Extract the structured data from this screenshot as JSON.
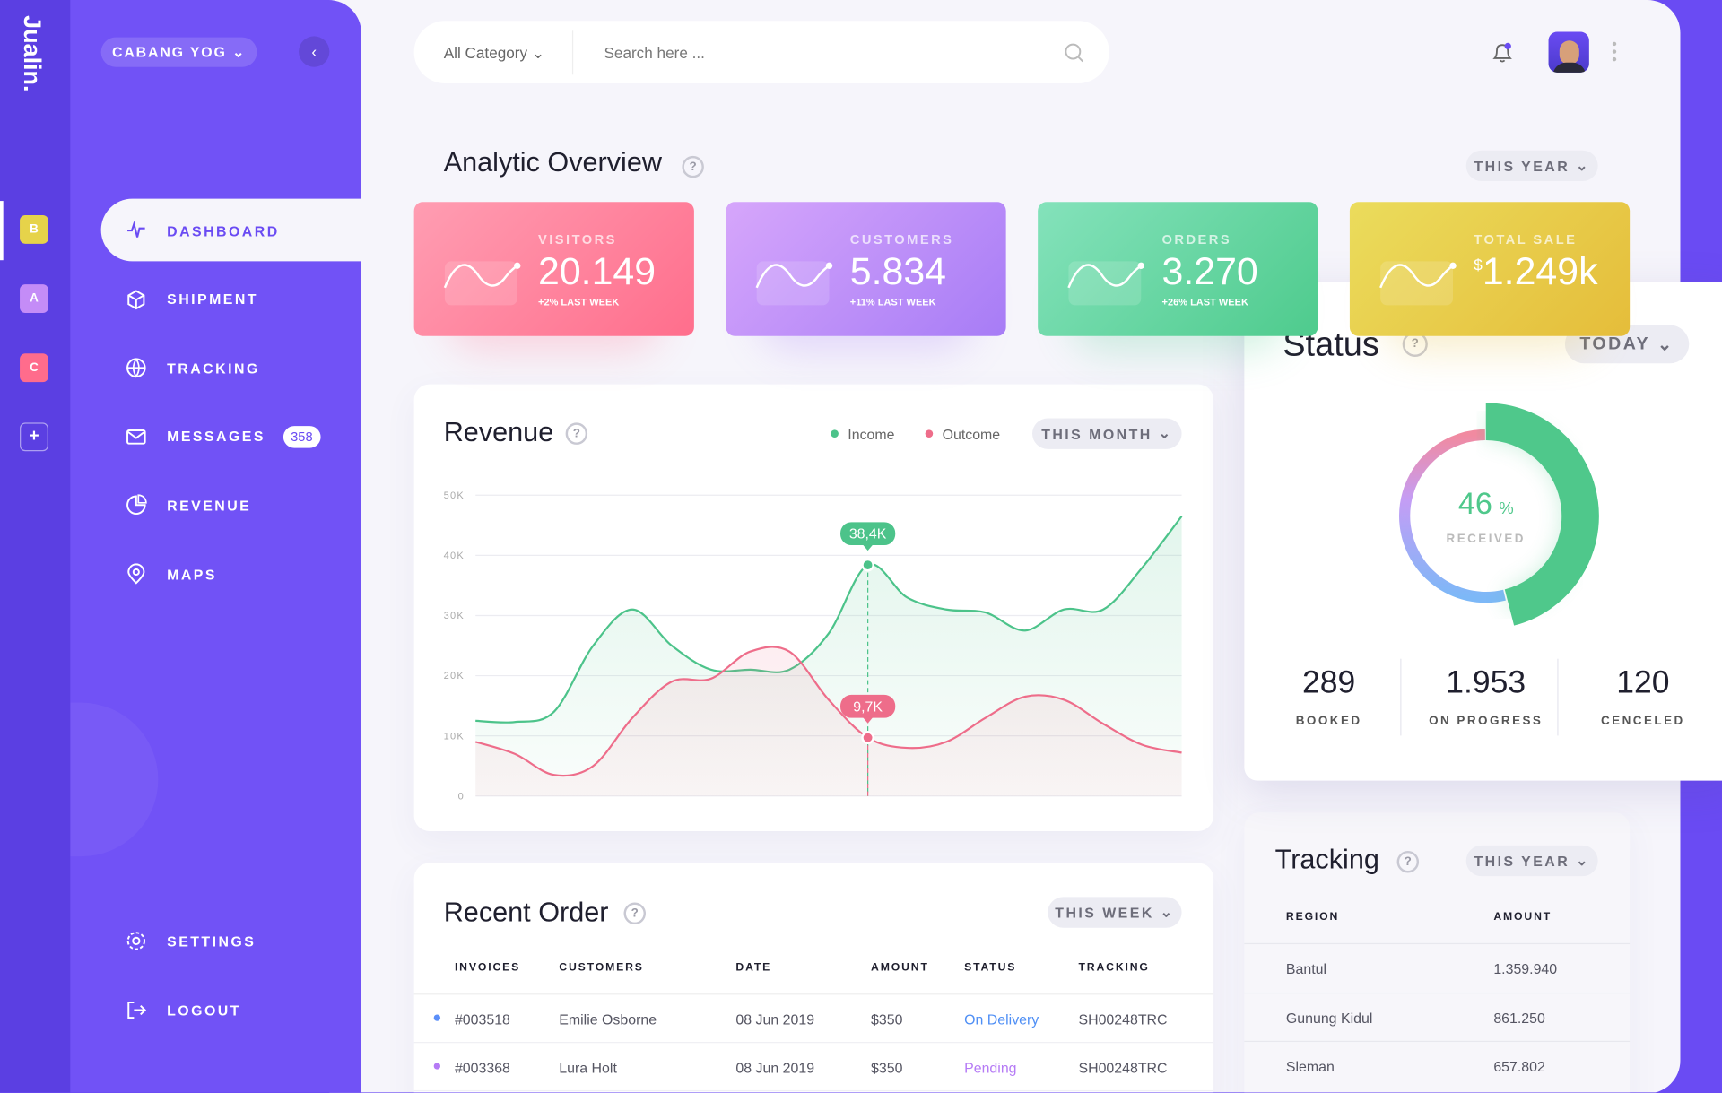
{
  "app": {
    "logo": "Jualin.",
    "workspaces": [
      {
        "label": "B",
        "color": "#e6d34a"
      },
      {
        "label": "A",
        "color": "#c48cf7"
      },
      {
        "label": "C",
        "color": "#ff6c8c"
      },
      {
        "label": "+",
        "color": "none"
      }
    ]
  },
  "sidebar": {
    "branch": "CABANG YOG",
    "nav": [
      {
        "label": "DASHBOARD"
      },
      {
        "label": "SHIPMENT"
      },
      {
        "label": "TRACKING"
      },
      {
        "label": "MESSAGES",
        "badge": 358
      },
      {
        "label": "REVENUE"
      },
      {
        "label": "MAPS"
      }
    ],
    "bottom": [
      {
        "label": "SETTINGS"
      },
      {
        "label": "LOGOUT"
      }
    ]
  },
  "header": {
    "category": "All Category",
    "search_placeholder": "Search here ..."
  },
  "overview": {
    "title": "Analytic Overview",
    "period": "THIS YEAR",
    "cards": [
      {
        "label": "VISITORS",
        "value": "20.149",
        "change": "+2% LAST WEEK",
        "colors": [
          "#ff9db2",
          "#ff6e8c"
        ]
      },
      {
        "label": "CUSTOMERS",
        "value": "5.834",
        "change": "+11% LAST WEEK",
        "colors": [
          "#d6a6fb",
          "#a77cf6"
        ]
      },
      {
        "label": "ORDERS",
        "value": "3.270",
        "change": "+26% LAST WEEK",
        "colors": [
          "#84e2bb",
          "#4ecb8d"
        ]
      },
      {
        "label": "TOTAL SALE",
        "currency": "$",
        "value": "1.249k",
        "colors": [
          "#ebdc5c",
          "#e5bd3a"
        ]
      }
    ]
  },
  "revenue": {
    "title": "Revenue",
    "period": "THIS MONTH",
    "chart": {
      "type": "line",
      "grid": true,
      "x": [
        0,
        1,
        2,
        3,
        4,
        5,
        6,
        7,
        8,
        9,
        10,
        11,
        12,
        13,
        14,
        15,
        16,
        17,
        18
      ],
      "xlim": [
        0,
        18
      ],
      "ylim": [
        0,
        50000
      ],
      "yticks": [
        0,
        {
          "value": 10000,
          "label": "10K"
        },
        {
          "value": 20000,
          "label": "20K"
        },
        {
          "value": 30000,
          "label": "30K"
        },
        {
          "value": 40000,
          "label": "40K"
        },
        {
          "value": 50000,
          "label": "50K"
        }
      ],
      "series": [
        {
          "name": "Income",
          "color": "#4cc38a",
          "values": [
            12500,
            12300,
            14000,
            25000,
            31000,
            25000,
            21000,
            21000,
            21000,
            27000,
            38400,
            33000,
            31000,
            30500,
            27500,
            31000,
            31000,
            38000,
            46500
          ],
          "value_labels": [
            null,
            null,
            null,
            null,
            null,
            null,
            null,
            null,
            null,
            null,
            "38,4K",
            null,
            null,
            null,
            null,
            null,
            null,
            null,
            null
          ]
        },
        {
          "name": "Outcome",
          "color": "#ee6d8a",
          "values": [
            9000,
            7000,
            3500,
            5000,
            13000,
            19000,
            19500,
            24000,
            24000,
            16000,
            9700,
            8000,
            9000,
            13000,
            16500,
            16000,
            12000,
            8500,
            7200
          ],
          "value_labels": [
            null,
            null,
            null,
            null,
            null,
            null,
            null,
            null,
            null,
            null,
            "9,7K",
            null,
            null,
            null,
            null,
            null,
            null,
            null,
            null
          ]
        }
      ]
    }
  },
  "status": {
    "title": "Status",
    "period": "TODAY",
    "received": {
      "value": 46,
      "unit": "%",
      "label": "RECEIVED",
      "color": "#4fc88b"
    },
    "stats": [
      {
        "value": "289",
        "label": "BOOKED"
      },
      {
        "value": "1.953",
        "label": "ON PROGRESS"
      },
      {
        "value": "120",
        "label": "CENCELED"
      }
    ]
  },
  "orders": {
    "title": "Recent Order",
    "period": "THIS WEEK",
    "columns": [
      "INVOICES",
      "CUSTOMERS",
      "DATE",
      "AMOUNT",
      "STATUS",
      "TRACKING"
    ],
    "rows": [
      {
        "color": "#5b8ff9",
        "status_color": "#4f8ff5",
        "cells": [
          "#003518",
          "Emilie Osborne",
          "08 Jun 2019",
          "$350",
          "On Delivery",
          "SH00248TRC"
        ]
      },
      {
        "color": "#b57af5",
        "status_color": "#b57af5",
        "cells": [
          "#003368",
          "Lura Holt",
          "08 Jun 2019",
          "$350",
          "Pending",
          "SH00248TRC"
        ]
      }
    ]
  },
  "tracking": {
    "title": "Tracking",
    "period": "THIS YEAR",
    "columns": [
      "REGION",
      "AMOUNT"
    ],
    "rows": [
      [
        "Bantul",
        "1.359.940"
      ],
      [
        "Gunung Kidul",
        "861.250"
      ],
      [
        "Sleman",
        "657.802"
      ]
    ]
  }
}
